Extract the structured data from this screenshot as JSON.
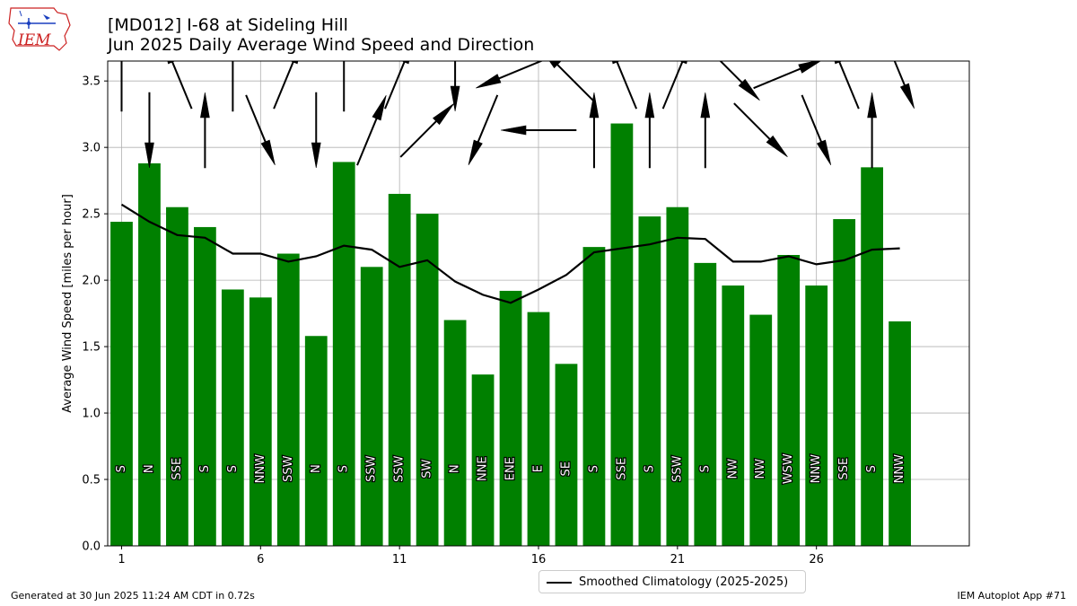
{
  "header": {
    "title": "[MD012] I-68 at Sideling Hill",
    "subtitle": "Jun 2025 Daily Average Wind Speed and Direction"
  },
  "logo": {
    "text": "IEM"
  },
  "footer": {
    "generated": "Generated at 30 Jun 2025 11:24 AM CDT in 0.72s",
    "app": "IEM Autoplot App #71"
  },
  "legend": {
    "label": "Smoothed Climatology (2025-2025)"
  },
  "colors": {
    "bar": "#008000",
    "line": "#000000",
    "grid": "#b0b0b0",
    "logo_red": "#cc2222",
    "logo_blue": "#1a3fbf"
  },
  "chart_data": {
    "type": "bar",
    "ylabel": "Average Wind Speed [miles per hour]",
    "xlabel": "",
    "ylim": [
      0,
      3.65
    ],
    "xlim": [
      0.5,
      31.5
    ],
    "xticks": [
      1,
      6,
      11,
      16,
      21,
      26
    ],
    "yticks": [
      0.0,
      0.5,
      1.0,
      1.5,
      2.0,
      2.5,
      3.0,
      3.5
    ],
    "grid": true,
    "legend_position": "bottom-center",
    "days": [
      1,
      2,
      3,
      4,
      5,
      6,
      7,
      8,
      9,
      10,
      11,
      12,
      13,
      14,
      15,
      16,
      17,
      18,
      19,
      20,
      21,
      22,
      23,
      24,
      25,
      26,
      27,
      28,
      29
    ],
    "values": [
      2.44,
      2.88,
      2.55,
      2.4,
      1.93,
      1.87,
      2.2,
      1.58,
      2.89,
      2.1,
      2.65,
      2.5,
      1.7,
      1.29,
      1.92,
      1.76,
      1.37,
      2.25,
      3.18,
      2.48,
      2.55,
      2.13,
      1.96,
      1.74,
      2.19,
      1.96,
      2.46,
      2.85,
      1.69
    ],
    "directions": [
      "S",
      "N",
      "SSE",
      "S",
      "S",
      "NNW",
      "SSW",
      "N",
      "S",
      "SSW",
      "SSW",
      "SW",
      "N",
      "NNE",
      "ENE",
      "E",
      "SE",
      "S",
      "SSE",
      "S",
      "SSW",
      "S",
      "NW",
      "NW",
      "WSW",
      "NNW",
      "SSE",
      "S",
      "NNW"
    ],
    "series": [
      {
        "name": "Smoothed Climatology (2025-2025)",
        "type": "line",
        "x": [
          1,
          2,
          3,
          4,
          5,
          6,
          7,
          8,
          9,
          10,
          11,
          12,
          13,
          14,
          15,
          16,
          17,
          18,
          19,
          20,
          21,
          22,
          23,
          24,
          25,
          26,
          27,
          28,
          29
        ],
        "values": [
          2.57,
          2.44,
          2.34,
          2.32,
          2.2,
          2.2,
          2.14,
          2.18,
          2.26,
          2.23,
          2.1,
          2.15,
          1.99,
          1.89,
          1.83,
          1.93,
          2.04,
          2.21,
          2.24,
          2.27,
          2.32,
          2.31,
          2.14,
          2.14,
          2.18,
          2.12,
          2.15,
          2.23,
          2.24
        ]
      }
    ]
  }
}
